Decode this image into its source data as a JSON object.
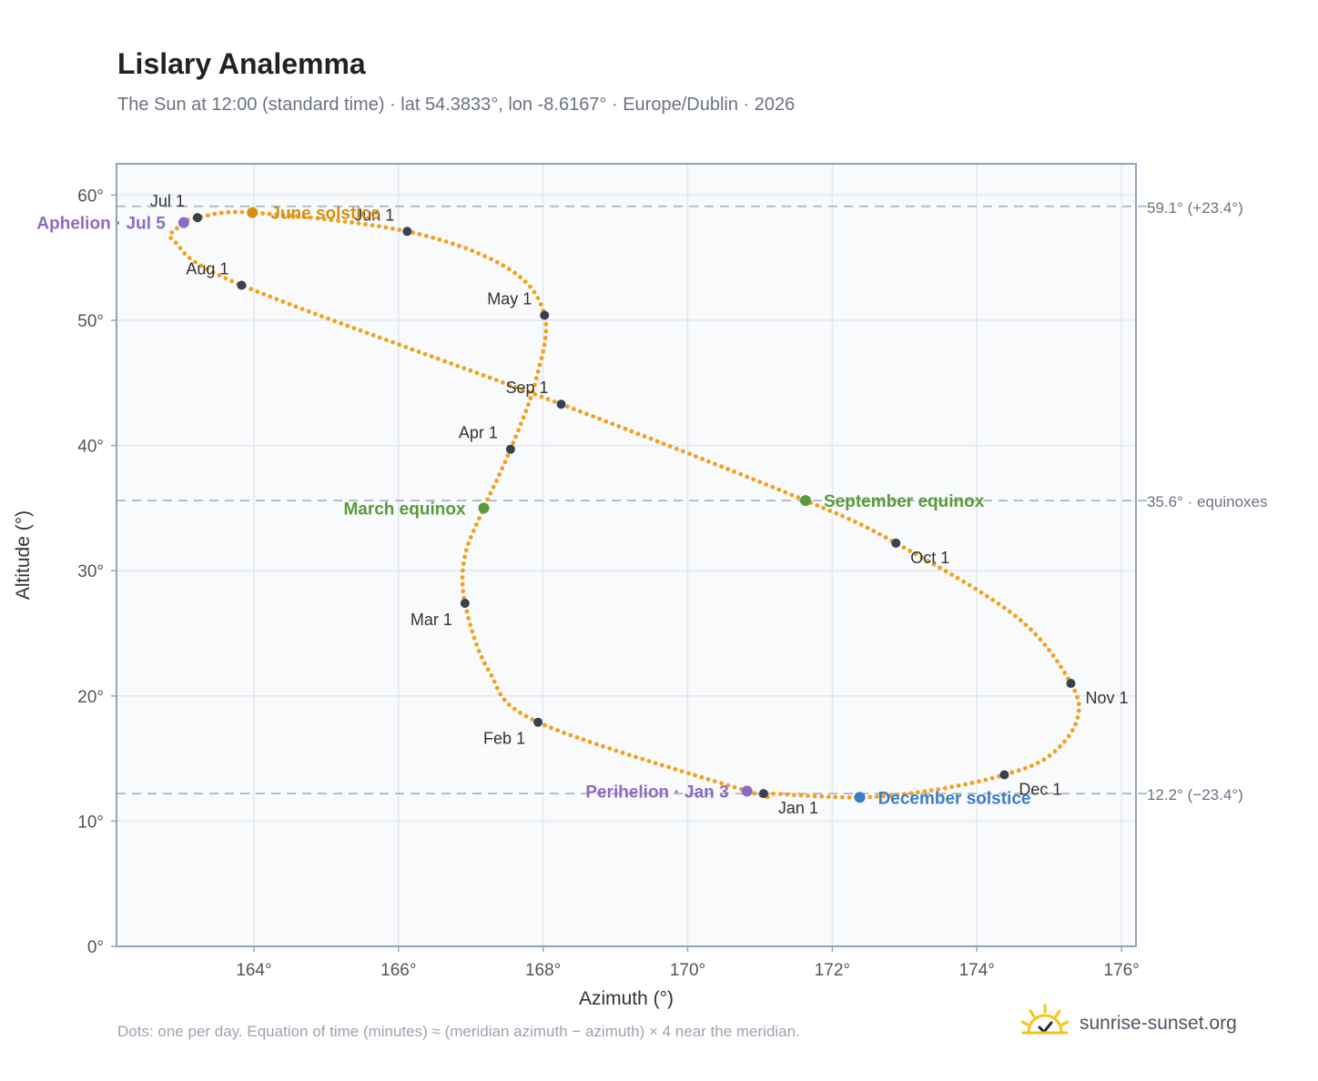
{
  "header": {
    "title": "Lislary Analemma",
    "subtitle": "The Sun at 12:00 (standard time) · lat 54.3833°, lon -8.6167° · Europe/Dublin · 2026"
  },
  "footer": {
    "note": "Dots: one per day. Equation of time (minutes) ≈ (meridian azimuth − azimuth) × 4 near the meridian.",
    "brand": "sunrise-sunset.org",
    "brand_icon": "sun-logo-icon"
  },
  "colors": {
    "curve": "#f0a21f",
    "month_marker": "#374151",
    "solstice_june": "#d68f0c",
    "equinox": "#5a9a3a",
    "solstice_december": "#3b7cc4",
    "apsis": "#8e6bbf",
    "reference_line": "#aab6c4",
    "plot_background": "#f8fafc",
    "grid": "#e2e8f0",
    "frame": "#94a3b8"
  },
  "chart_data": {
    "type": "scatter",
    "xlabel": "Azimuth (°)",
    "ylabel": "Altitude (°)",
    "xlim": [
      162.1,
      176.2
    ],
    "ylim": [
      0,
      62.5
    ],
    "xticks": [
      164,
      166,
      168,
      170,
      172,
      174,
      176
    ],
    "yticks": [
      0,
      10,
      20,
      30,
      40,
      50,
      60
    ],
    "x_tick_suffix": "°",
    "y_tick_suffix": "°",
    "grid": true,
    "curve_anchors": [
      {
        "date": "Jan 1",
        "az": 171.05,
        "alt": 12.2
      },
      {
        "date": "Jan 3",
        "az": 170.82,
        "alt": 12.4
      },
      {
        "date": "Feb 1",
        "az": 167.93,
        "alt": 17.9
      },
      {
        "date": "Feb 16",
        "az": 167.25,
        "alt": 22.0
      },
      {
        "date": "Mar 1",
        "az": 166.92,
        "alt": 27.4
      },
      {
        "date": "Mar 10",
        "az": 166.92,
        "alt": 31.2
      },
      {
        "date": "Mar 20",
        "az": 167.18,
        "alt": 35.0
      },
      {
        "date": "Apr 1",
        "az": 167.55,
        "alt": 39.7
      },
      {
        "date": "Apr 16",
        "az": 167.9,
        "alt": 45.2
      },
      {
        "date": "May 1",
        "az": 168.02,
        "alt": 50.4
      },
      {
        "date": "May 15",
        "az": 167.5,
        "alt": 54.2
      },
      {
        "date": "Jun 1",
        "az": 166.12,
        "alt": 57.1
      },
      {
        "date": "Jun 21",
        "az": 163.98,
        "alt": 58.6
      },
      {
        "date": "Jul 1",
        "az": 163.22,
        "alt": 58.2
      },
      {
        "date": "Jul 5",
        "az": 163.03,
        "alt": 57.8
      },
      {
        "date": "Jul 10",
        "az": 162.92,
        "alt": 57.2
      },
      {
        "date": "Jul 15",
        "az": 162.9,
        "alt": 56.3
      },
      {
        "date": "Aug 1",
        "az": 163.83,
        "alt": 52.8
      },
      {
        "date": "Sep 1",
        "az": 168.25,
        "alt": 43.3
      },
      {
        "date": "Sep 23",
        "az": 171.63,
        "alt": 35.6
      },
      {
        "date": "Oct 1",
        "az": 172.88,
        "alt": 32.2
      },
      {
        "date": "Oct 15",
        "az": 174.55,
        "alt": 26.3
      },
      {
        "date": "Nov 1",
        "az": 175.3,
        "alt": 21.0
      },
      {
        "date": "Nov 10",
        "az": 175.38,
        "alt": 18.0
      },
      {
        "date": "Nov 20",
        "az": 175.0,
        "alt": 15.2
      },
      {
        "date": "Dec 1",
        "az": 174.38,
        "alt": 13.7
      },
      {
        "date": "Dec 12",
        "az": 173.42,
        "alt": 12.5
      },
      {
        "date": "Dec 21",
        "az": 172.38,
        "alt": 11.9
      },
      {
        "date": "Dec 31",
        "az": 171.15,
        "alt": 12.2
      }
    ],
    "month_markers": [
      {
        "label": "Jan 1",
        "az": 171.05,
        "alt": 12.2,
        "anchor": "below-right"
      },
      {
        "label": "Feb 1",
        "az": 167.93,
        "alt": 17.9,
        "anchor": "below-left"
      },
      {
        "label": "Mar 1",
        "az": 166.92,
        "alt": 27.4,
        "anchor": "below-left"
      },
      {
        "label": "Apr 1",
        "az": 167.55,
        "alt": 39.7,
        "anchor": "above-left"
      },
      {
        "label": "May 1",
        "az": 168.02,
        "alt": 50.4,
        "anchor": "above-left"
      },
      {
        "label": "Jun 1",
        "az": 166.12,
        "alt": 57.1,
        "anchor": "above-left"
      },
      {
        "label": "Jul 1",
        "az": 163.22,
        "alt": 58.2,
        "anchor": "above-left"
      },
      {
        "label": "Aug 1",
        "az": 163.83,
        "alt": 52.8,
        "anchor": "above-left"
      },
      {
        "label": "Sep 1",
        "az": 168.25,
        "alt": 43.3,
        "anchor": "above-left"
      },
      {
        "label": "Oct 1",
        "az": 172.88,
        "alt": 32.2,
        "anchor": "below-right"
      },
      {
        "label": "Nov 1",
        "az": 175.3,
        "alt": 21.0,
        "anchor": "below-right"
      },
      {
        "label": "Dec 1",
        "az": 174.38,
        "alt": 13.7,
        "anchor": "below-right"
      }
    ],
    "events": [
      {
        "label": "June solstice",
        "az": 163.98,
        "alt": 58.6,
        "color": "#d68f0c",
        "anchor": "right"
      },
      {
        "label": "March equinox",
        "az": 167.18,
        "alt": 35.0,
        "color": "#5a9a3a",
        "anchor": "left"
      },
      {
        "label": "September equinox",
        "az": 171.63,
        "alt": 35.6,
        "color": "#5a9a3a",
        "anchor": "right"
      },
      {
        "label": "December solstice",
        "az": 172.38,
        "alt": 11.9,
        "color": "#3b7cc4",
        "anchor": "right"
      },
      {
        "label": "Aphelion · Jul 5",
        "az": 163.03,
        "alt": 57.8,
        "color": "#8e6bbf",
        "anchor": "left"
      },
      {
        "label": "Perihelion · Jan 3",
        "az": 170.82,
        "alt": 12.4,
        "color": "#8e6bbf",
        "anchor": "left"
      }
    ],
    "reference_lines": [
      {
        "alt": 59.1,
        "label": "59.1° (+23.4°)"
      },
      {
        "alt": 35.6,
        "label": "35.6° · equinoxes"
      },
      {
        "alt": 12.2,
        "label": "12.2° (−23.4°)"
      }
    ]
  }
}
